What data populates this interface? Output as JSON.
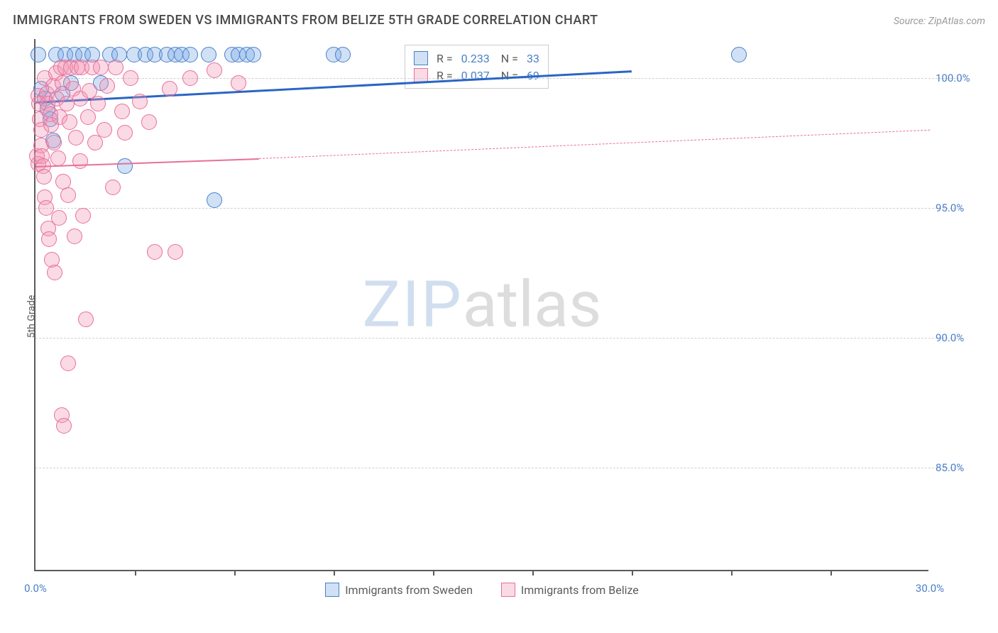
{
  "header": {
    "title": "IMMIGRANTS FROM SWEDEN VS IMMIGRANTS FROM BELIZE 5TH GRADE CORRELATION CHART",
    "source": "Source: ZipAtlas.com"
  },
  "chart": {
    "type": "scatter",
    "ylabel": "5th Grade",
    "background_color": "#ffffff",
    "grid_color": "#d0d0d0",
    "axis_color": "#5a5a5a",
    "xlim": [
      0,
      30
    ],
    "ylim": [
      81,
      101.5
    ],
    "xticks_minor": [
      3.33,
      6.67,
      10,
      13.33,
      16.67,
      20,
      23.33,
      26.67
    ],
    "xticks_label": [
      {
        "x": 0,
        "label": "0.0%"
      },
      {
        "x": 30,
        "label": "30.0%"
      }
    ],
    "yticks": [
      {
        "y": 85,
        "label": "85.0%"
      },
      {
        "y": 90,
        "label": "90.0%"
      },
      {
        "y": 95,
        "label": "95.0%"
      },
      {
        "y": 100,
        "label": "100.0%"
      }
    ],
    "series": [
      {
        "name": "Immigrants from Sweden",
        "fill_color": "rgba(120,170,230,0.35)",
        "stroke_color": "#4a7fc8",
        "line_color": "#2a66c4",
        "marker_radius": 11,
        "stats": {
          "R": "0.233",
          "N": "33"
        },
        "trend": {
          "x1": 0,
          "y1": 99.1,
          "x2": 20,
          "y2": 100.3,
          "dashed": false,
          "width": 3
        },
        "points": [
          {
            "x": 0.1,
            "y": 100.9
          },
          {
            "x": 0.2,
            "y": 99.6
          },
          {
            "x": 0.3,
            "y": 99.2
          },
          {
            "x": 0.4,
            "y": 98.8
          },
          {
            "x": 0.5,
            "y": 98.4
          },
          {
            "x": 0.6,
            "y": 97.6
          },
          {
            "x": 0.7,
            "y": 100.9
          },
          {
            "x": 0.9,
            "y": 99.4
          },
          {
            "x": 1.0,
            "y": 100.9
          },
          {
            "x": 1.2,
            "y": 99.8
          },
          {
            "x": 1.3,
            "y": 100.9
          },
          {
            "x": 1.6,
            "y": 100.9
          },
          {
            "x": 1.9,
            "y": 100.9
          },
          {
            "x": 2.2,
            "y": 99.8
          },
          {
            "x": 2.5,
            "y": 100.9
          },
          {
            "x": 2.8,
            "y": 100.9
          },
          {
            "x": 3.0,
            "y": 96.6
          },
          {
            "x": 3.3,
            "y": 100.9
          },
          {
            "x": 3.7,
            "y": 100.9
          },
          {
            "x": 4.0,
            "y": 100.9
          },
          {
            "x": 4.4,
            "y": 100.9
          },
          {
            "x": 4.7,
            "y": 100.9
          },
          {
            "x": 4.9,
            "y": 100.9
          },
          {
            "x": 5.2,
            "y": 100.9
          },
          {
            "x": 5.8,
            "y": 100.9
          },
          {
            "x": 6.0,
            "y": 95.3
          },
          {
            "x": 6.6,
            "y": 100.9
          },
          {
            "x": 6.8,
            "y": 100.9
          },
          {
            "x": 7.1,
            "y": 100.9
          },
          {
            "x": 7.3,
            "y": 100.9
          },
          {
            "x": 10.0,
            "y": 100.9
          },
          {
            "x": 10.3,
            "y": 100.9
          },
          {
            "x": 23.6,
            "y": 100.9
          }
        ]
      },
      {
        "name": "Immigrants from Belize",
        "fill_color": "rgba(240,150,180,0.35)",
        "stroke_color": "#e86f9a",
        "line_color": "#e86f9a",
        "marker_radius": 11,
        "stats": {
          "R": "0.037",
          "N": "69"
        },
        "trend_solid": {
          "x1": 0,
          "y1": 96.6,
          "x2": 7.5,
          "y2": 96.9,
          "dashed": false,
          "width": 2
        },
        "trend_dash": {
          "x1": 7.5,
          "y1": 96.9,
          "x2": 30,
          "y2": 98.0,
          "dashed": true,
          "width": 1
        },
        "points": [
          {
            "x": 0.05,
            "y": 97.0
          },
          {
            "x": 0.1,
            "y": 96.7
          },
          {
            "x": 0.1,
            "y": 99.3
          },
          {
            "x": 0.12,
            "y": 99.0
          },
          {
            "x": 0.15,
            "y": 98.4
          },
          {
            "x": 0.18,
            "y": 98.0
          },
          {
            "x": 0.2,
            "y": 97.4
          },
          {
            "x": 0.22,
            "y": 97.0
          },
          {
            "x": 0.25,
            "y": 96.6
          },
          {
            "x": 0.28,
            "y": 96.2
          },
          {
            "x": 0.3,
            "y": 100.0
          },
          {
            "x": 0.32,
            "y": 95.4
          },
          {
            "x": 0.35,
            "y": 95.0
          },
          {
            "x": 0.38,
            "y": 99.4
          },
          {
            "x": 0.4,
            "y": 99.0
          },
          {
            "x": 0.42,
            "y": 94.2
          },
          {
            "x": 0.45,
            "y": 93.8
          },
          {
            "x": 0.5,
            "y": 98.6
          },
          {
            "x": 0.52,
            "y": 98.2
          },
          {
            "x": 0.55,
            "y": 93.0
          },
          {
            "x": 0.6,
            "y": 99.7
          },
          {
            "x": 0.62,
            "y": 97.5
          },
          {
            "x": 0.65,
            "y": 92.5
          },
          {
            "x": 0.7,
            "y": 100.2
          },
          {
            "x": 0.72,
            "y": 99.2
          },
          {
            "x": 0.75,
            "y": 96.9
          },
          {
            "x": 0.78,
            "y": 94.6
          },
          {
            "x": 0.8,
            "y": 98.5
          },
          {
            "x": 0.85,
            "y": 100.4
          },
          {
            "x": 0.88,
            "y": 87.0
          },
          {
            "x": 0.9,
            "y": 99.8
          },
          {
            "x": 0.92,
            "y": 96.0
          },
          {
            "x": 0.95,
            "y": 86.6
          },
          {
            "x": 1.0,
            "y": 100.4
          },
          {
            "x": 1.05,
            "y": 99.0
          },
          {
            "x": 1.1,
            "y": 95.5
          },
          {
            "x": 1.1,
            "y": 89.0
          },
          {
            "x": 1.15,
            "y": 98.3
          },
          {
            "x": 1.2,
            "y": 100.4
          },
          {
            "x": 1.25,
            "y": 99.6
          },
          {
            "x": 1.3,
            "y": 93.9
          },
          {
            "x": 1.35,
            "y": 97.7
          },
          {
            "x": 1.4,
            "y": 100.4
          },
          {
            "x": 1.5,
            "y": 99.2
          },
          {
            "x": 1.5,
            "y": 96.8
          },
          {
            "x": 1.55,
            "y": 100.4
          },
          {
            "x": 1.6,
            "y": 94.7
          },
          {
            "x": 1.7,
            "y": 90.7
          },
          {
            "x": 1.75,
            "y": 98.5
          },
          {
            "x": 1.8,
            "y": 99.5
          },
          {
            "x": 1.9,
            "y": 100.4
          },
          {
            "x": 2.0,
            "y": 97.5
          },
          {
            "x": 2.1,
            "y": 99.0
          },
          {
            "x": 2.2,
            "y": 100.4
          },
          {
            "x": 2.3,
            "y": 98.0
          },
          {
            "x": 2.4,
            "y": 99.7
          },
          {
            "x": 2.6,
            "y": 95.8
          },
          {
            "x": 2.7,
            "y": 100.4
          },
          {
            "x": 2.9,
            "y": 98.7
          },
          {
            "x": 3.0,
            "y": 97.9
          },
          {
            "x": 3.2,
            "y": 100.0
          },
          {
            "x": 3.5,
            "y": 99.1
          },
          {
            "x": 3.8,
            "y": 98.3
          },
          {
            "x": 4.0,
            "y": 93.3
          },
          {
            "x": 4.5,
            "y": 99.6
          },
          {
            "x": 4.7,
            "y": 93.3
          },
          {
            "x": 5.2,
            "y": 100.0
          },
          {
            "x": 6.0,
            "y": 100.3
          },
          {
            "x": 6.8,
            "y": 99.8
          }
        ]
      }
    ],
    "watermark": {
      "zip": "ZIP",
      "atlas": "atlas"
    },
    "legend": {
      "sweden": "Immigrants from Sweden",
      "belize": "Immigrants from Belize"
    }
  }
}
